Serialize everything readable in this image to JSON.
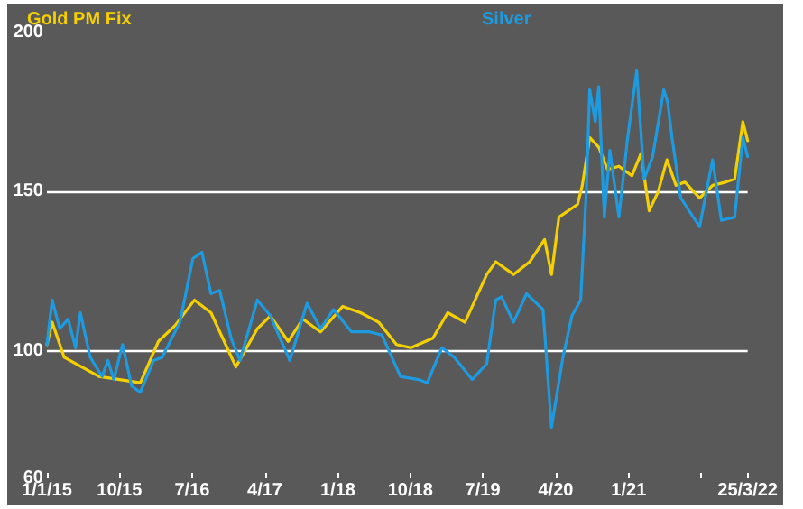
{
  "chart_data": {
    "type": "line",
    "ylim": [
      60,
      200
    ],
    "yticks": [
      60,
      100,
      150,
      200
    ],
    "grid": "y",
    "legend": "top",
    "marker": "none",
    "line_style": "solid",
    "xlim": [
      "2015-01-01",
      "2022-03-25"
    ],
    "xticks": [
      {
        "value": "2015-01-01",
        "label": "1/1/15"
      },
      {
        "value": "2015-10-01",
        "label": "10/15"
      },
      {
        "value": "2016-07-01",
        "label": "7/16"
      },
      {
        "value": "2017-04-01",
        "label": "4/17"
      },
      {
        "value": "2018-01-01",
        "label": "1/18"
      },
      {
        "value": "2018-10-01",
        "label": "10/18"
      },
      {
        "value": "2019-07-01",
        "label": "7/19"
      },
      {
        "value": "2020-04-01",
        "label": "4/20"
      },
      {
        "value": "2021-01-01",
        "label": "1/21"
      },
      {
        "value": "2021-10-01",
        "label": null
      },
      {
        "value": "2022-03-25",
        "label": "25/3/22"
      }
    ],
    "series": [
      {
        "name": "Gold PM Fix",
        "color": "#f5d000",
        "x": [
          "2015-01-01",
          "2015-01-21",
          "2015-03-07",
          "2015-07-16",
          "2015-12-19",
          "2016-02-25",
          "2016-04-28",
          "2016-07-10",
          "2016-09-10",
          "2016-12-13",
          "2017-03-04",
          "2017-04-22",
          "2017-06-28",
          "2017-08-22",
          "2017-10-28",
          "2018-01-19",
          "2018-03-28",
          "2018-06-04",
          "2018-08-10",
          "2018-10-04",
          "2018-12-25",
          "2019-02-19",
          "2019-04-25",
          "2019-07-16",
          "2019-08-19",
          "2019-10-25",
          "2019-12-25",
          "2020-02-19",
          "2020-03-16",
          "2020-04-13",
          "2020-06-22",
          "2020-07-10",
          "2020-08-07",
          "2020-09-10",
          "2020-10-13",
          "2020-11-25",
          "2021-01-13",
          "2021-02-16",
          "2021-03-19",
          "2021-04-22",
          "2021-05-25",
          "2021-06-28",
          "2021-08-01",
          "2021-09-25",
          "2021-11-13",
          "2022-01-01",
          "2022-02-04",
          "2022-03-07",
          "2022-03-25"
        ],
        "values": [
          102,
          109,
          98,
          92,
          90,
          103,
          108,
          116,
          112,
          95,
          107,
          111,
          103,
          110,
          106,
          114,
          112,
          109,
          102,
          101,
          104,
          112,
          109,
          124,
          128,
          124,
          128,
          135,
          124,
          142,
          146,
          152,
          167,
          164,
          157,
          158,
          155,
          162,
          144,
          150,
          160,
          152,
          153,
          148,
          152,
          153,
          154,
          172,
          166
        ]
      },
      {
        "name": "Silver",
        "color": "#1e9be0",
        "x": [
          "2015-01-01",
          "2015-01-21",
          "2015-02-18",
          "2015-03-22",
          "2015-04-19",
          "2015-05-07",
          "2015-06-13",
          "2015-07-28",
          "2015-08-19",
          "2015-09-10",
          "2015-10-13",
          "2015-11-16",
          "2015-12-19",
          "2016-02-07",
          "2016-03-10",
          "2016-05-16",
          "2016-07-04",
          "2016-08-07",
          "2016-09-10",
          "2016-10-13",
          "2016-11-25",
          "2016-12-28",
          "2017-03-04",
          "2017-04-22",
          "2017-07-04",
          "2017-09-07",
          "2017-10-28",
          "2017-12-16",
          "2018-02-22",
          "2018-05-01",
          "2018-06-16",
          "2018-08-25",
          "2018-11-01",
          "2018-12-04",
          "2019-01-28",
          "2019-03-16",
          "2019-05-22",
          "2019-07-16",
          "2019-08-19",
          "2019-09-10",
          "2019-10-25",
          "2019-12-13",
          "2020-02-13",
          "2020-03-16",
          "2020-04-28",
          "2020-06-01",
          "2020-07-04",
          "2020-07-25",
          "2020-08-07",
          "2020-08-28",
          "2020-09-10",
          "2020-10-01",
          "2020-10-22",
          "2020-11-25",
          "2020-12-28",
          "2021-01-31",
          "2021-02-28",
          "2021-04-01",
          "2021-05-13",
          "2021-05-28",
          "2021-06-13",
          "2021-07-16",
          "2021-09-25",
          "2021-11-13",
          "2021-12-16",
          "2022-02-04",
          "2022-03-07",
          "2022-03-25"
        ],
        "values": [
          102,
          116,
          107,
          110,
          101,
          112,
          98,
          92,
          97,
          91,
          102,
          89,
          87,
          97,
          98,
          109,
          129,
          131,
          118,
          119,
          104,
          97,
          116,
          111,
          97,
          115,
          107,
          113,
          106,
          106,
          105,
          92,
          91,
          90,
          101,
          98,
          91,
          96,
          116,
          117,
          109,
          118,
          113,
          76,
          98,
          111,
          116,
          150,
          182,
          172,
          183,
          142,
          163,
          142,
          167,
          188,
          154,
          161,
          182,
          178,
          167,
          148,
          139,
          160,
          141,
          142,
          167,
          161
        ]
      }
    ]
  }
}
